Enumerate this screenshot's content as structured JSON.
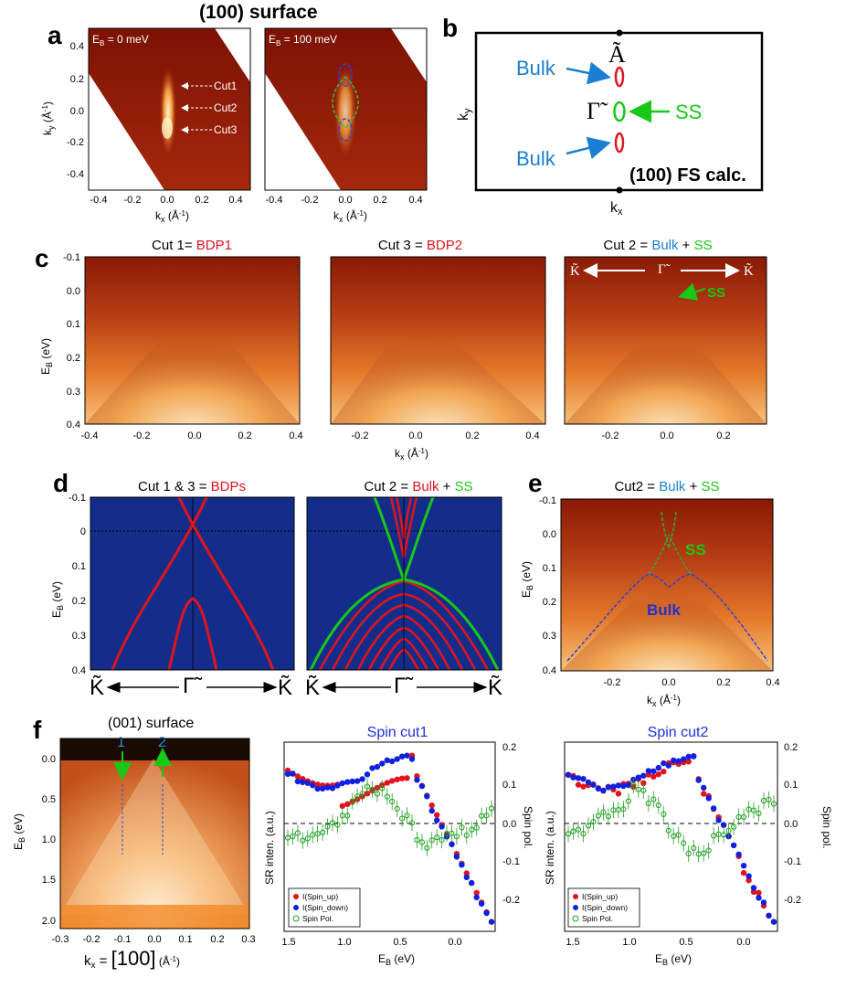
{
  "panel_labels": {
    "a": "a",
    "b": "b",
    "c": "c",
    "d": "d",
    "e": "e",
    "f": "f"
  },
  "panel_a": {
    "title": "(100) surface",
    "map1_label": "E",
    "map1_label_sub": "B",
    "map1_label_val": " = 0 meV",
    "map2_label": "E",
    "map2_label_sub": "B",
    "map2_label_val": " = 100 meV",
    "cuts": [
      "Cut1",
      "Cut2",
      "Cut3"
    ],
    "ylabel": "k",
    "ylabel_sub": "y",
    "ylabel_unit": " (Å",
    "unit_sup": "-1",
    "unit_close": ")",
    "xlabel": "k",
    "xlabel_sub": "x",
    "yticks": [
      "0.4",
      "0.2",
      "0.0",
      "-0.2",
      "-0.4"
    ],
    "xticks": [
      "-0.4",
      "-0.2",
      "0.0",
      "0.2",
      "0.4"
    ]
  },
  "panel_b": {
    "A_label": "Ã",
    "G_label": "Γ̃",
    "bulk_top": "Bulk",
    "bulk_bottom": "Bulk",
    "ss": "SS",
    "calc": "(100) FS calc.",
    "ky": "k",
    "ky_sub": "y",
    "kx": "k",
    "kx_sub": "x"
  },
  "panel_c": {
    "t1_a": "Cut 1= ",
    "t1_b": "BDP1",
    "t2_a": "Cut 3 = ",
    "t2_b": "BDP2",
    "t3_a": "Cut 2 = ",
    "t3_b": "Bulk",
    "t3_c": " + ",
    "t3_d": "SS",
    "ylabel": "E",
    "ylabel_sub": "B",
    "ylabel_unit": " (eV)",
    "yticks": [
      "-0.1",
      "0.0",
      "0.1",
      "0.2",
      "0.3",
      "0.4"
    ],
    "xticks1": [
      "-0.4",
      "-0.2",
      "0.0",
      "0.2",
      "0.4"
    ],
    "xticks2": [
      "-0.2",
      "0.0",
      "0.2",
      "0.4"
    ],
    "xticks3": [
      "-0.2",
      "0.0",
      "0.2"
    ],
    "xlabel": "k",
    "xlabel_sub": "x",
    "xlabel_unit": " (Å",
    "unit_sup": "-1",
    "unit_close": ")",
    "K_left": "K̃",
    "G_mid": "Γ̃",
    "K_right": "K̃",
    "ss": "SS"
  },
  "panel_d": {
    "t1_a": "Cut 1 & 3 = ",
    "t1_b": "BDPs",
    "t2_a": "Cut 2 = ",
    "t2_b": "Bulk",
    "t2_c": " + ",
    "t2_d": "SS",
    "ylabel": "E",
    "ylabel_sub": "B",
    "ylabel_unit": " (eV)",
    "yticks": [
      "-0.1",
      "0",
      "0.1",
      "0.2",
      "0.3",
      "0.4"
    ],
    "K": "K̃",
    "G": "Γ̃"
  },
  "panel_e": {
    "t_a": "Cut2 = ",
    "t_b": "Bulk",
    "t_c": " + ",
    "t_d": "SS",
    "ss": "SS",
    "bulk": "Bulk",
    "ylabel": "E",
    "ylabel_sub": "B",
    "ylabel_unit": " (eV)",
    "yticks": [
      "-0.1",
      "0.0",
      "0.1",
      "0.2",
      "0.3",
      "0.4"
    ],
    "xticks": [
      "-0.2",
      "0.0",
      "0.2",
      "0.4"
    ],
    "xlabel": "k",
    "xlabel_sub": "x",
    "xlabel_unit": " (Å",
    "unit_sup": "-1",
    "unit_close": ")"
  },
  "panel_f": {
    "title": "(001) surface",
    "line1": "1",
    "line2": "2",
    "ylabel": "E",
    "ylabel_sub": "B",
    "ylabel_unit": " (eV)",
    "yticks": [
      "0.0",
      "0.5",
      "1.0",
      "1.5",
      "2.0"
    ],
    "xticks": [
      "-0.3",
      "-0.2",
      "-0.1",
      "0.0",
      "0.1",
      "0.2",
      "0.3"
    ],
    "xlabel_a": "k",
    "xlabel_sub": "x",
    "xlabel_b": " = ",
    "xlabel_c": "[100]",
    "xlabel_d": "  (Å",
    "unit_sup": "-1",
    "unit_close": ")",
    "spin1_title": "Spin cut1",
    "spin2_title": "Spin cut2",
    "sr_ylabel": "SR inten. (a.u.)",
    "pol_ylabel": "Spin pol.",
    "pol_ticks": [
      "0.2",
      "0.1",
      "0.0",
      "-0.1",
      "-0.2"
    ],
    "eb_ticks": [
      "1.5",
      "1.0",
      "0.5",
      "0.0"
    ],
    "eb_label": "E",
    "eb_label_sub": "B",
    "eb_label_unit": " (eV)",
    "legend": [
      "I(Spin_up)",
      "I(Spin_down)",
      "Spin Pol."
    ]
  },
  "colors": {
    "bulk_blue": "#1a7fd0",
    "ss_green": "#18c818",
    "red": "#e0141e",
    "navy": "#152d8a"
  }
}
